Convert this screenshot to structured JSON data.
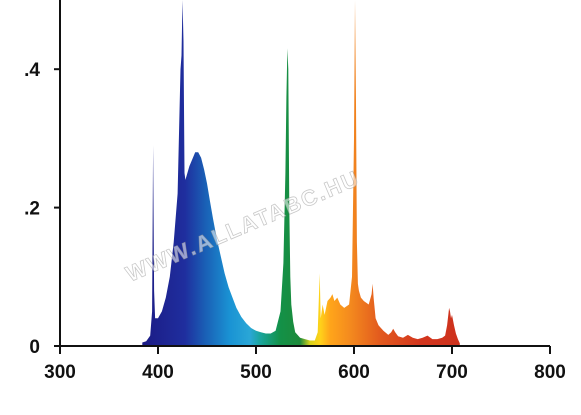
{
  "chart_data": {
    "type": "area",
    "title": "",
    "xlabel": "",
    "ylabel": "",
    "xlim": [
      300,
      800
    ],
    "ylim": [
      0,
      0.5
    ],
    "x_ticks": [
      300,
      400,
      500,
      600,
      700,
      800
    ],
    "x_tick_labels": [
      "300",
      "400",
      "500",
      "600",
      "700",
      "800"
    ],
    "y_ticks": [
      0,
      0.2,
      0.4
    ],
    "y_tick_labels": [
      "0",
      ".2",
      ".4"
    ],
    "grid": false,
    "legend": "none",
    "fill": "wavelength-colored spectrum gradient",
    "series": [
      {
        "x": [
          384,
          388,
          392,
          394,
          395,
          396,
          397,
          400,
          404,
          408,
          412,
          416,
          420,
          423,
          424,
          425,
          426,
          427,
          428,
          430,
          432,
          435,
          438,
          441,
          444,
          447,
          450,
          453,
          456,
          460,
          464,
          468,
          472,
          476,
          480,
          485,
          490,
          495,
          500,
          505,
          510,
          515,
          520,
          525,
          528,
          530,
          531,
          532,
          533,
          534,
          535,
          536,
          538,
          540,
          545,
          550,
          555,
          560,
          563,
          565,
          566,
          567,
          568,
          570,
          573,
          576,
          578,
          580,
          583,
          586,
          590,
          595,
          598,
          600,
          601,
          602,
          603,
          604,
          605,
          607,
          610,
          615,
          618,
          619,
          620,
          622,
          625,
          630,
          635,
          638,
          640,
          642,
          645,
          650,
          655,
          660,
          665,
          670,
          675,
          680,
          685,
          690,
          693,
          695,
          697,
          698,
          699,
          700,
          702,
          704,
          706,
          708
        ],
        "y": [
          0.005,
          0.007,
          0.015,
          0.05,
          0.29,
          0.08,
          0.04,
          0.04,
          0.05,
          0.07,
          0.1,
          0.15,
          0.22,
          0.4,
          0.42,
          0.5,
          0.44,
          0.25,
          0.24,
          0.25,
          0.26,
          0.27,
          0.28,
          0.28,
          0.272,
          0.255,
          0.235,
          0.21,
          0.185,
          0.155,
          0.13,
          0.105,
          0.085,
          0.07,
          0.055,
          0.042,
          0.033,
          0.026,
          0.022,
          0.02,
          0.018,
          0.018,
          0.022,
          0.05,
          0.12,
          0.25,
          0.36,
          0.43,
          0.4,
          0.2,
          0.1,
          0.06,
          0.035,
          0.02,
          0.012,
          0.01,
          0.008,
          0.008,
          0.02,
          0.105,
          0.04,
          0.05,
          0.06,
          0.045,
          0.065,
          0.07,
          0.075,
          0.065,
          0.07,
          0.06,
          0.055,
          0.06,
          0.1,
          0.3,
          0.5,
          0.35,
          0.15,
          0.09,
          0.08,
          0.07,
          0.065,
          0.06,
          0.075,
          0.09,
          0.07,
          0.04,
          0.03,
          0.022,
          0.016,
          0.02,
          0.025,
          0.02,
          0.014,
          0.012,
          0.016,
          0.012,
          0.01,
          0.012,
          0.015,
          0.01,
          0.01,
          0.012,
          0.015,
          0.03,
          0.055,
          0.05,
          0.04,
          0.045,
          0.03,
          0.018,
          0.01,
          0.004
        ]
      }
    ],
    "annotations": [
      "WWW.ALLATABC.HU"
    ]
  }
}
